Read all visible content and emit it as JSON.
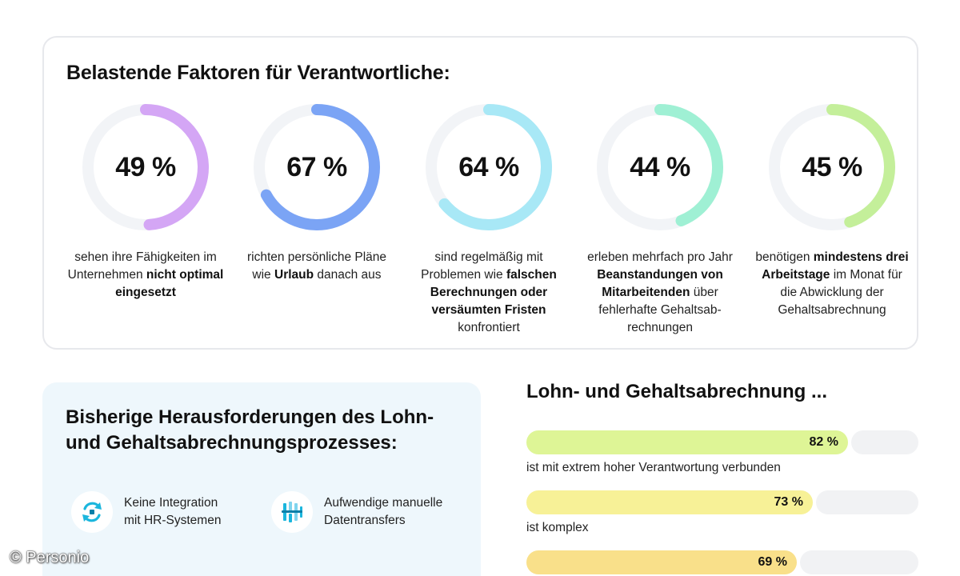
{
  "top": {
    "title": "Belastende Faktoren für Verantwortliche:",
    "stats": [
      {
        "value": 49,
        "label": "49 %",
        "color": "#d4a6f5",
        "parts": [
          [
            "sehen ihre Fähigkeiten im Unternehmen ",
            false
          ],
          [
            "nicht optimal eingesetzt",
            true
          ]
        ]
      },
      {
        "value": 67,
        "label": "67 %",
        "color": "#7ba4f5",
        "parts": [
          [
            "richten persönliche Pläne wie ",
            false
          ],
          [
            "Urlaub",
            true
          ],
          [
            " danach aus",
            false
          ]
        ]
      },
      {
        "value": 64,
        "label": "64 %",
        "color": "#a8e8f6",
        "parts": [
          [
            "sind regelmäßig mit Problemen wie ",
            false
          ],
          [
            "falschen Berechnungen oder versäumten Fristen",
            true
          ],
          [
            " konfrontiert",
            false
          ]
        ]
      },
      {
        "value": 44,
        "label": "44 %",
        "color": "#9ff0d4",
        "parts": [
          [
            "erleben mehrfach pro Jahr ",
            false
          ],
          [
            "Beanstandungen von Mitarbeitenden",
            true
          ],
          [
            " über fehlerhafte Gehaltsab­rechnungen",
            false
          ]
        ]
      },
      {
        "value": 45,
        "label": "45 %",
        "color": "#c4ef9a",
        "parts": [
          [
            "benötigen ",
            false
          ],
          [
            "mindestens drei Arbeitstage",
            true
          ],
          [
            " im Monat für die Abwicklung der Gehaltsabrechnung",
            false
          ]
        ]
      }
    ]
  },
  "left": {
    "title": "Bisherige Herausforderungen des Lohn- und Gehaltsabrechnungsprozesses:",
    "features": [
      {
        "icon": "sync-arrows-icon",
        "text_line1": "Keine Integration",
        "text_line2": "mit HR-Systemen"
      },
      {
        "icon": "data-transfer-icon",
        "text_line1": "Aufwendige manuelle",
        "text_line2": "Datentransfers"
      }
    ]
  },
  "bars": {
    "title": "Lohn- und Gehaltsabrechnung ...",
    "items": [
      {
        "value": 82,
        "label": "82 %",
        "text": "ist mit extrem hoher Verantwortung verbunden",
        "color": "#def596"
      },
      {
        "value": 73,
        "label": "73 %",
        "text": "ist komplex",
        "color": "#f7f197"
      },
      {
        "value": 69,
        "label": "69 %",
        "text": "",
        "color": "#f9e08a"
      }
    ]
  },
  "copyright": "© Personio",
  "chart_data": [
    {
      "type": "pie",
      "title": "Belastende Faktoren für Verantwortliche:",
      "categories": [
        "sehen ihre Fähigkeiten im Unternehmen nicht optimal eingesetzt",
        "richten persönliche Pläne wie Urlaub danach aus",
        "sind regelmäßig mit Problemen wie falschen Berechnungen oder versäumten Fristen konfrontiert",
        "erleben mehrfach pro Jahr Beanstandungen von Mitarbeitenden über fehlerhafte Gehaltsabrechnungen",
        "benötigen mindestens drei Arbeitstage im Monat für die Abwicklung der Gehaltsabrechnung"
      ],
      "values": [
        49,
        67,
        64,
        44,
        45
      ],
      "unit": "%"
    },
    {
      "type": "bar",
      "title": "Lohn- und Gehaltsabrechnung ...",
      "categories": [
        "ist mit extrem hoher Verantwortung verbunden",
        "ist komplex",
        ""
      ],
      "values": [
        82,
        73,
        69
      ],
      "unit": "%",
      "ylim": [
        0,
        100
      ]
    }
  ]
}
